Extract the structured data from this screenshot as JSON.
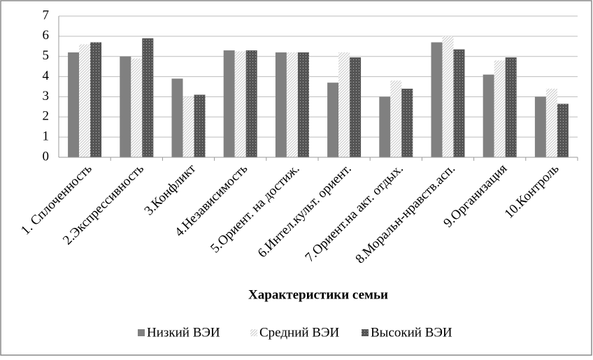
{
  "chart_data": {
    "type": "bar",
    "x_label": "Характеристики семьи",
    "categories": [
      "1. Сплоченность",
      "2.Экспрессивность",
      "3.Конфликт",
      "4.Независимость",
      "5.Ориент. на достиж.",
      "6.Интел.культ. ориент.",
      "7.Ориент.на акт. отдых.",
      "8.Моральн-нравств.асп.",
      "9.Организация",
      "10.Контроль"
    ],
    "series": [
      {
        "name": "Низкий ВЭИ",
        "color": "#808080",
        "values": [
          5.2,
          5.0,
          3.9,
          5.3,
          5.2,
          3.7,
          3.0,
          5.7,
          4.1,
          3.0
        ]
      },
      {
        "name": "Средний ВЭИ",
        "color": "#d0d0d0",
        "values": [
          5.6,
          4.9,
          3.0,
          5.25,
          5.2,
          5.2,
          3.8,
          6.0,
          4.8,
          3.4
        ]
      },
      {
        "name": "Высокий ВЭИ",
        "color": "#555555",
        "values": [
          5.7,
          5.9,
          3.1,
          5.3,
          5.2,
          4.95,
          3.4,
          5.35,
          4.95,
          2.65
        ]
      }
    ],
    "ylim": [
      0,
      7
    ],
    "yticks": [
      0,
      1,
      2,
      3,
      4,
      5,
      6,
      7
    ],
    "grid": true,
    "legend": "bottom"
  }
}
